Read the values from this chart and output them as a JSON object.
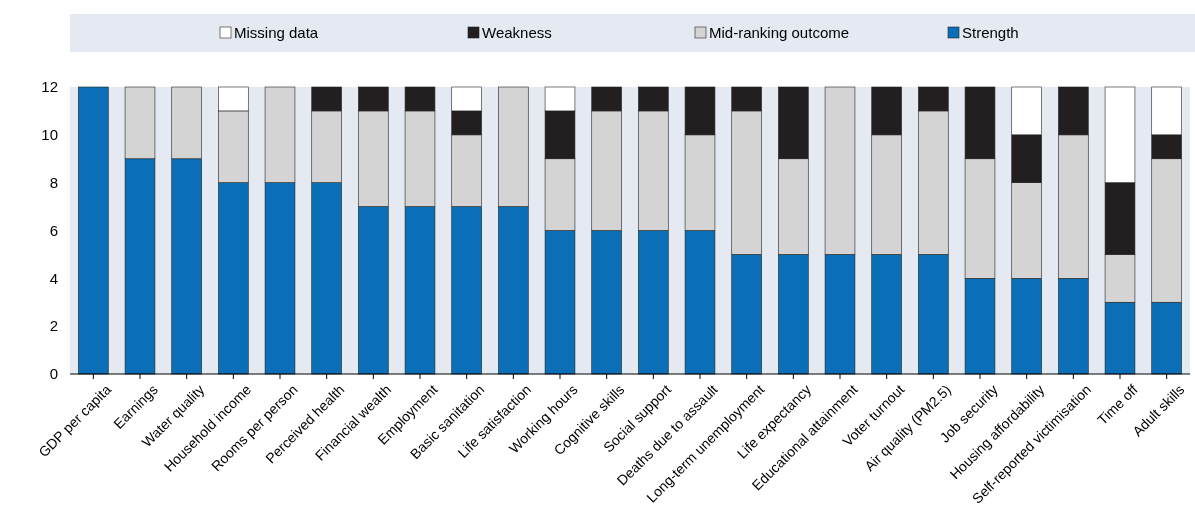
{
  "chart_data": {
    "type": "bar",
    "stacked": true,
    "categories": [
      "GDP per capita",
      "Earnings",
      "Water quality",
      "Household income",
      "Rooms per person",
      "Perceived health",
      "Financial wealth",
      "Employment",
      "Basic sanitation",
      "Life satisfaction",
      "Working hours",
      "Cognitive skills",
      "Social support",
      "Deaths due to assault",
      "Long-term unemployment",
      "Life expectancy",
      "Educational attainment",
      "Voter turnout",
      "Air quality (PM2.5)",
      "Job security",
      "Housing affordability",
      "Self-reported victimisation",
      "Time off",
      "Adult skills"
    ],
    "series": [
      {
        "name": "Strength",
        "color": "#0b6fb8",
        "values": [
          12,
          9,
          9,
          8,
          8,
          8,
          7,
          7,
          7,
          7,
          6,
          6,
          6,
          6,
          5,
          5,
          5,
          5,
          5,
          4,
          4,
          4,
          3,
          3
        ]
      },
      {
        "name": "Mid-ranking outcome",
        "color": "#d4d4d4",
        "values": [
          0,
          3,
          3,
          3,
          4,
          3,
          4,
          4,
          3,
          5,
          3,
          5,
          5,
          4,
          6,
          4,
          7,
          5,
          6,
          5,
          4,
          6,
          2,
          6
        ]
      },
      {
        "name": "Weakness",
        "color": "#231f20",
        "values": [
          0,
          0,
          0,
          0,
          0,
          1,
          1,
          1,
          1,
          0,
          2,
          1,
          1,
          2,
          1,
          3,
          0,
          2,
          1,
          3,
          2,
          2,
          3,
          1
        ]
      },
      {
        "name": "Missing data",
        "color": "#ffffff",
        "values": [
          0,
          0,
          0,
          1,
          0,
          0,
          0,
          0,
          1,
          0,
          1,
          0,
          0,
          0,
          0,
          0,
          0,
          0,
          0,
          0,
          2,
          0,
          4,
          2
        ]
      }
    ],
    "ylim": [
      0,
      12
    ],
    "yticks": [
      0,
      2,
      4,
      6,
      8,
      10,
      12
    ],
    "grid": false,
    "legend": "top"
  }
}
